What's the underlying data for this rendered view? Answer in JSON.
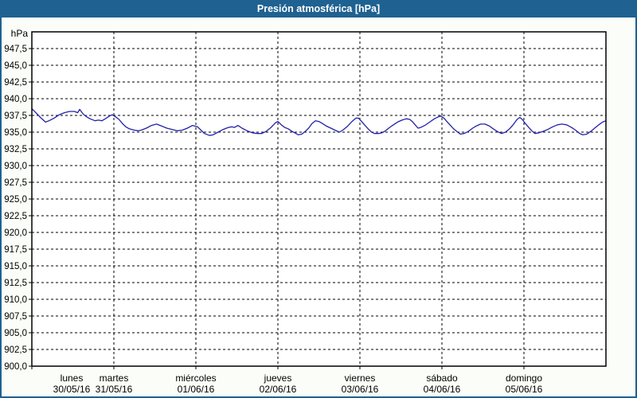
{
  "window": {
    "title": "Presión atmosférica [hPa]",
    "titlebar_color": "#1f6191",
    "background_color": "#fbfef8"
  },
  "chart_data": {
    "type": "line",
    "title": "Presión atmosférica [hPa]",
    "y_unit": "hPa",
    "xlabel": "",
    "ylabel": "hPa",
    "ylim": [
      900,
      950
    ],
    "ytick_step": 2.5,
    "ytick_labels": [
      "947,5",
      "945,0",
      "942,5",
      "940,0",
      "937,5",
      "935,0",
      "932,5",
      "930,0",
      "927,5",
      "925,0",
      "922,5",
      "920,0",
      "917,5",
      "915,0",
      "912,5",
      "910,0",
      "907,5",
      "905,0",
      "902,5",
      "900,0"
    ],
    "xlim_hours": [
      0,
      168
    ],
    "x_days": [
      {
        "weekday": "lunes",
        "date": "30/05/16"
      },
      {
        "weekday": "martes",
        "date": "31/05/16"
      },
      {
        "weekday": "miércoles",
        "date": "01/06/16"
      },
      {
        "weekday": "jueves",
        "date": "02/06/16"
      },
      {
        "weekday": "viernes",
        "date": "03/06/16"
      },
      {
        "weekday": "sábado",
        "date": "04/06/16"
      },
      {
        "weekday": "domingo",
        "date": "05/06/16"
      }
    ],
    "grid": "dashed",
    "legend": "none",
    "colors": {
      "line": "#2121aa",
      "grid": "#000000",
      "plot_background": "#ffffff",
      "frame": "#000000"
    },
    "series": [
      {
        "name": "Presión atmosférica",
        "points": [
          [
            0,
            938.5
          ],
          [
            1,
            938.0
          ],
          [
            2.5,
            937.2
          ],
          [
            4,
            936.5
          ],
          [
            5,
            936.7
          ],
          [
            6.5,
            937.1
          ],
          [
            8,
            937.6
          ],
          [
            9.5,
            937.9
          ],
          [
            11,
            938.1
          ],
          [
            12.5,
            938.1
          ],
          [
            13.4,
            937.9
          ],
          [
            14,
            938.4
          ],
          [
            15,
            937.7
          ],
          [
            16,
            937.3
          ],
          [
            17,
            937.0
          ],
          [
            18.5,
            936.7
          ],
          [
            19.5,
            936.8
          ],
          [
            20.5,
            936.7
          ],
          [
            21.5,
            937.0
          ],
          [
            22.7,
            937.4
          ],
          [
            23.5,
            937.6
          ],
          [
            24.5,
            937.3
          ],
          [
            25.5,
            936.9
          ],
          [
            26.5,
            936.3
          ],
          [
            27.5,
            935.8
          ],
          [
            28.5,
            935.5
          ],
          [
            30,
            935.3
          ],
          [
            31.2,
            935.2
          ],
          [
            32,
            935.3
          ],
          [
            33.5,
            935.6
          ],
          [
            35,
            936.0
          ],
          [
            36.5,
            936.2
          ],
          [
            38,
            935.9
          ],
          [
            39.5,
            935.6
          ],
          [
            41,
            935.4
          ],
          [
            42.5,
            935.2
          ],
          [
            44,
            935.3
          ],
          [
            45.5,
            935.6
          ],
          [
            47,
            936.0
          ],
          [
            48.5,
            935.8
          ],
          [
            49.5,
            935.3
          ],
          [
            50.5,
            934.8
          ],
          [
            52,
            934.5
          ],
          [
            53,
            934.6
          ],
          [
            54.5,
            935.0
          ],
          [
            56,
            935.4
          ],
          [
            57.5,
            935.7
          ],
          [
            58.5,
            935.8
          ],
          [
            59.3,
            935.7
          ],
          [
            60.3,
            936.0
          ],
          [
            61.5,
            935.6
          ],
          [
            63,
            935.2
          ],
          [
            64.5,
            934.9
          ],
          [
            66,
            934.8
          ],
          [
            67.3,
            934.8
          ],
          [
            68.5,
            935.1
          ],
          [
            70,
            935.7
          ],
          [
            71.3,
            936.4
          ],
          [
            72,
            936.6
          ],
          [
            73,
            936.1
          ],
          [
            74,
            935.7
          ],
          [
            75,
            935.5
          ],
          [
            76.2,
            935.1
          ],
          [
            77.3,
            934.8
          ],
          [
            78,
            934.6
          ],
          [
            79,
            934.7
          ],
          [
            80,
            935.1
          ],
          [
            81,
            935.6
          ],
          [
            82,
            936.3
          ],
          [
            83,
            936.7
          ],
          [
            84,
            936.6
          ],
          [
            85,
            936.3
          ],
          [
            86.2,
            935.9
          ],
          [
            87.5,
            935.6
          ],
          [
            88.7,
            935.3
          ],
          [
            90,
            935.0
          ],
          [
            91,
            935.3
          ],
          [
            92.2,
            935.8
          ],
          [
            93.5,
            936.5
          ],
          [
            94.8,
            937.1
          ],
          [
            95.6,
            937.1
          ],
          [
            96.5,
            936.6
          ],
          [
            97.5,
            936.0
          ],
          [
            98.4,
            935.5
          ],
          [
            99.4,
            935.0
          ],
          [
            100.3,
            934.8
          ],
          [
            101.5,
            934.8
          ],
          [
            102.5,
            934.9
          ],
          [
            103.5,
            935.2
          ],
          [
            104.7,
            935.7
          ],
          [
            105.8,
            936.1
          ],
          [
            107,
            936.5
          ],
          [
            108.3,
            936.8
          ],
          [
            109.6,
            937.0
          ],
          [
            110.6,
            936.9
          ],
          [
            111.5,
            936.5
          ],
          [
            112.3,
            936.0
          ],
          [
            113,
            935.6
          ],
          [
            113.8,
            935.7
          ],
          [
            115,
            936.0
          ],
          [
            116.4,
            936.5
          ],
          [
            117.8,
            937.0
          ],
          [
            119,
            937.3
          ],
          [
            119.7,
            937.4
          ],
          [
            120.6,
            937.1
          ],
          [
            121.6,
            936.5
          ],
          [
            122.5,
            936.0
          ],
          [
            123.4,
            935.5
          ],
          [
            124.4,
            935.1
          ],
          [
            125.4,
            934.7
          ],
          [
            126.5,
            934.8
          ],
          [
            127.7,
            935.1
          ],
          [
            129,
            935.6
          ],
          [
            130,
            935.9
          ],
          [
            131.3,
            936.2
          ],
          [
            132.6,
            936.2
          ],
          [
            133.9,
            935.9
          ],
          [
            135,
            935.5
          ],
          [
            136.2,
            935.1
          ],
          [
            137.4,
            934.8
          ],
          [
            138.6,
            935.0
          ],
          [
            139.8,
            935.5
          ],
          [
            141,
            936.2
          ],
          [
            142,
            936.9
          ],
          [
            142.8,
            937.2
          ],
          [
            143.5,
            936.9
          ],
          [
            144.4,
            936.3
          ],
          [
            145.4,
            935.7
          ],
          [
            146.3,
            935.2
          ],
          [
            147.2,
            934.8
          ],
          [
            148.4,
            934.9
          ],
          [
            149.5,
            935.1
          ],
          [
            151,
            935.4
          ],
          [
            152.4,
            935.8
          ],
          [
            153.8,
            936.1
          ],
          [
            155.1,
            936.2
          ],
          [
            156.5,
            936.1
          ],
          [
            157.9,
            935.7
          ],
          [
            159.1,
            935.3
          ],
          [
            160.3,
            934.8
          ],
          [
            161.2,
            934.6
          ],
          [
            162.4,
            934.7
          ],
          [
            163.5,
            935.1
          ],
          [
            164.7,
            935.6
          ],
          [
            165.9,
            936.1
          ],
          [
            167,
            936.5
          ],
          [
            168,
            936.7
          ]
        ]
      }
    ]
  }
}
